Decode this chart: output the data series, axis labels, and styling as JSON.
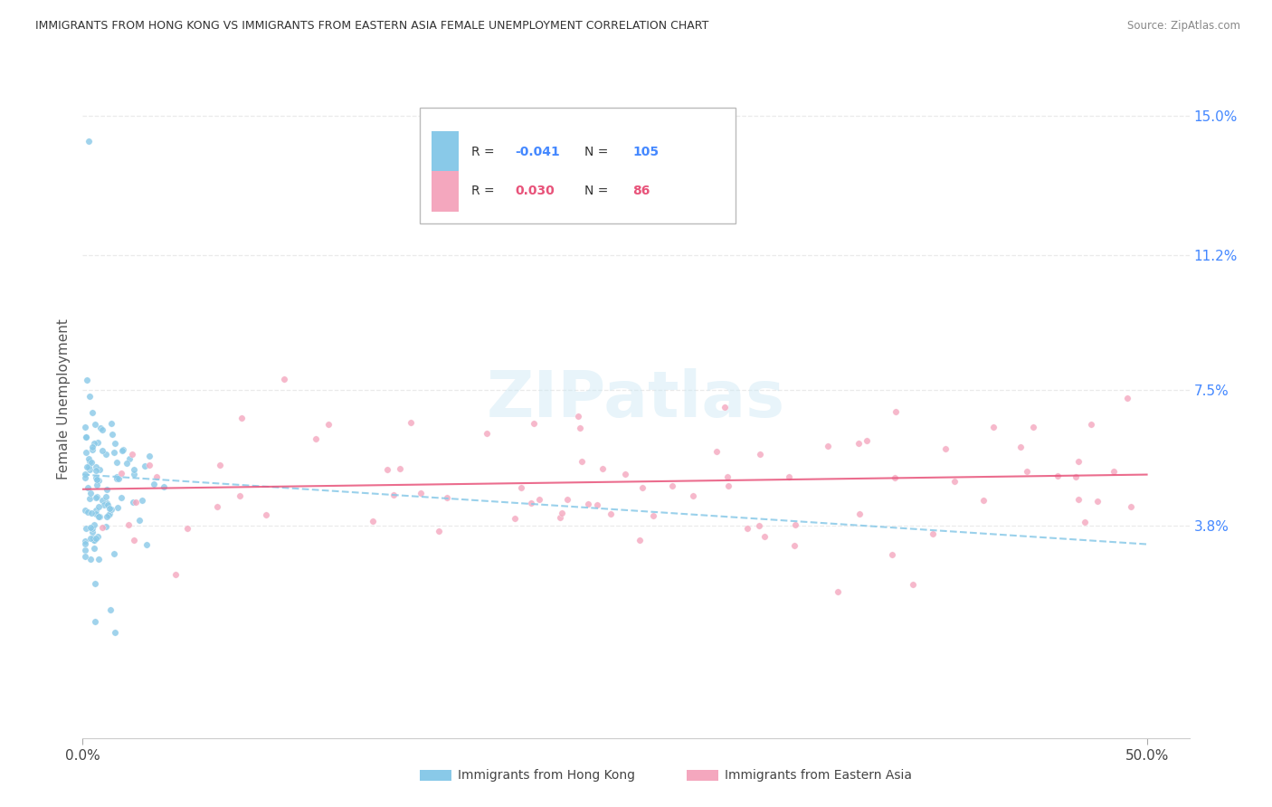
{
  "title": "IMMIGRANTS FROM HONG KONG VS IMMIGRANTS FROM EASTERN ASIA FEMALE UNEMPLOYMENT CORRELATION CHART",
  "source": "Source: ZipAtlas.com",
  "ylabel": "Female Unemployment",
  "watermark_text": "ZIPatlas",
  "hk_label": "Immigrants from Hong Kong",
  "ea_label": "Immigrants from Eastern Asia",
  "hk_R": -0.041,
  "hk_N": 105,
  "ea_R": 0.03,
  "ea_N": 86,
  "x_tick_labels": [
    "0.0%",
    "50.0%"
  ],
  "x_tick_vals": [
    0.0,
    0.5
  ],
  "y_tick_labels": [
    "15.0%",
    "11.2%",
    "7.5%",
    "3.8%"
  ],
  "y_tick_vals": [
    0.15,
    0.112,
    0.075,
    0.038
  ],
  "xlim": [
    0.0,
    0.52
  ],
  "ylim": [
    -0.02,
    0.165
  ],
  "hk_color": "#89C9E8",
  "ea_color": "#F4A7BE",
  "hk_trend_color": "#89C9E8",
  "ea_trend_color": "#E8537A",
  "background_color": "#ffffff",
  "title_color": "#333333",
  "right_axis_color": "#4488FF",
  "grid_color": "#e8e8e8",
  "legend_box_color": "#cccccc",
  "hk_legend_R_color": "#4488FF",
  "hk_legend_N_color": "#4488FF",
  "ea_legend_R_color": "#E8537A",
  "ea_legend_N_color": "#E8537A"
}
